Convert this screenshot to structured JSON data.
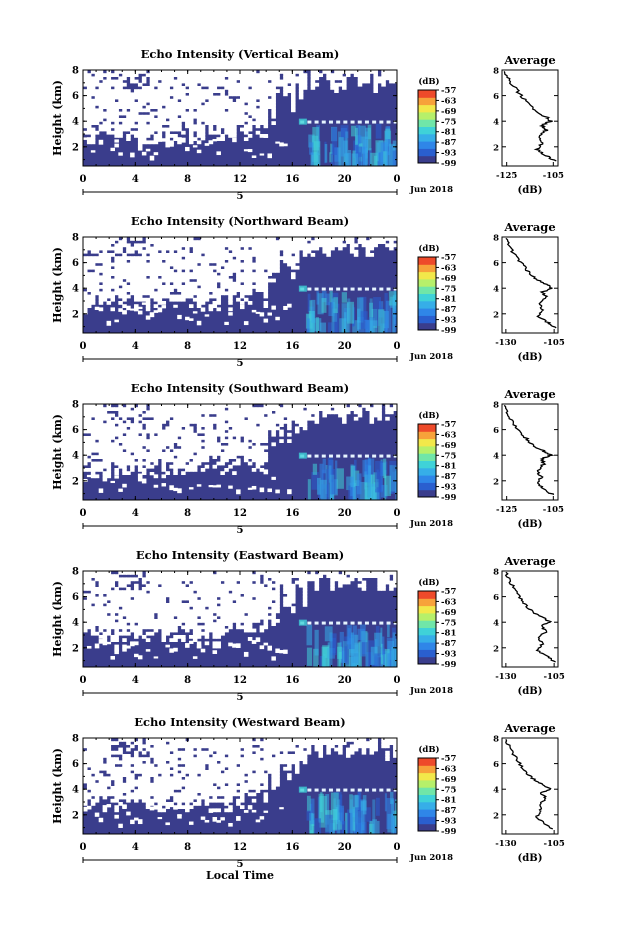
{
  "colormap": [
    "#3a3d8c",
    "#2a5fcf",
    "#2f86e8",
    "#36aee8",
    "#3fd2d8",
    "#70e6a8",
    "#b6f06a",
    "#f2e84a",
    "#f7a23a",
    "#ee4a2a"
  ],
  "background_color": "#3a3d8c",
  "chart_data": [
    {
      "type": "heatmap",
      "title": "Echo Intensity (Vertical Beam)",
      "ylabel": "Height (km)",
      "x_ticks": [
        "0",
        "4",
        "8",
        "12",
        "16",
        "20",
        "0"
      ],
      "x_range": [
        0,
        24
      ],
      "y_ticks": [
        "2",
        "4",
        "6",
        "8"
      ],
      "y_range": [
        0.5,
        8
      ],
      "day_label": "5",
      "month_label": "Jun 2018",
      "colorbar_unit": "(dB)",
      "colorbar_ticks": [
        "-57",
        "-63",
        "-69",
        "-75",
        "-81",
        "-87",
        "-93",
        "-99"
      ],
      "colorbar_range": [
        -99,
        -57
      ],
      "profile": {
        "title": "Average",
        "xlabel": "(dB)",
        "x_ticks": [
          "-125",
          "-105"
        ],
        "x_range": [
          -127,
          -103
        ],
        "y_ticks": [
          "2",
          "4",
          "6",
          "8"
        ],
        "y_range": [
          0.5,
          8
        ],
        "heights": [
          0.9,
          1.3,
          1.8,
          2.3,
          2.8,
          3.3,
          3.7,
          4.0,
          4.3,
          4.7,
          5.2,
          5.8,
          6.5,
          7.2,
          7.9
        ],
        "values": [
          -104,
          -108,
          -112,
          -110,
          -111,
          -108,
          -110,
          -106,
          -108,
          -112,
          -115,
          -118,
          -121,
          -124,
          -126
        ]
      }
    },
    {
      "type": "heatmap",
      "title": "Echo Intensity (Northward Beam)",
      "ylabel": "Height (km)",
      "x_ticks": [
        "0",
        "4",
        "8",
        "12",
        "16",
        "20",
        "0"
      ],
      "x_range": [
        0,
        24
      ],
      "y_ticks": [
        "2",
        "4",
        "6",
        "8"
      ],
      "y_range": [
        0.5,
        8
      ],
      "day_label": "5",
      "month_label": "Jun 2018",
      "colorbar_unit": "(dB)",
      "colorbar_ticks": [
        "-57",
        "-63",
        "-69",
        "-75",
        "-81",
        "-87",
        "-93",
        "-99"
      ],
      "colorbar_range": [
        -99,
        -57
      ],
      "profile": {
        "title": "Average",
        "xlabel": "(dB)",
        "x_ticks": [
          "-130",
          "-105"
        ],
        "x_range": [
          -132,
          -103
        ],
        "y_ticks": [
          "2",
          "4",
          "6",
          "8"
        ],
        "y_range": [
          0.5,
          8
        ],
        "heights": [
          0.9,
          1.3,
          1.8,
          2.3,
          2.8,
          3.3,
          3.7,
          4.0,
          4.3,
          4.7,
          5.2,
          5.8,
          6.5,
          7.2,
          7.9
        ],
        "values": [
          -104,
          -108,
          -113,
          -111,
          -112,
          -109,
          -111,
          -106,
          -109,
          -114,
          -118,
          -121,
          -125,
          -128,
          -130
        ]
      }
    },
    {
      "type": "heatmap",
      "title": "Echo Intensity (Southward Beam)",
      "ylabel": "Height (km)",
      "x_ticks": [
        "0",
        "4",
        "8",
        "12",
        "16",
        "20",
        "0"
      ],
      "x_range": [
        0,
        24
      ],
      "y_ticks": [
        "2",
        "4",
        "6",
        "8"
      ],
      "y_range": [
        0.5,
        8
      ],
      "day_label": "5",
      "month_label": "Jun 2018",
      "colorbar_unit": "(dB)",
      "colorbar_ticks": [
        "-57",
        "-63",
        "-69",
        "-75",
        "-81",
        "-87",
        "-93",
        "-99"
      ],
      "colorbar_range": [
        -99,
        -57
      ],
      "profile": {
        "title": "Average",
        "xlabel": "(dB)",
        "x_ticks": [
          "-125",
          "-105"
        ],
        "x_range": [
          -127,
          -103
        ],
        "y_ticks": [
          "2",
          "4",
          "6",
          "8"
        ],
        "y_range": [
          0.5,
          8
        ],
        "heights": [
          0.9,
          1.3,
          1.8,
          2.3,
          2.8,
          3.3,
          3.7,
          4.0,
          4.3,
          4.7,
          5.2,
          5.8,
          6.5,
          7.2,
          7.9
        ],
        "values": [
          -105,
          -109,
          -112,
          -110,
          -112,
          -109,
          -110,
          -106,
          -109,
          -113,
          -116,
          -119,
          -122,
          -125,
          -126
        ]
      }
    },
    {
      "type": "heatmap",
      "title": "Echo Intensity (Eastward Beam)",
      "ylabel": "Height (km)",
      "x_ticks": [
        "0",
        "4",
        "8",
        "12",
        "16",
        "20",
        "0"
      ],
      "x_range": [
        0,
        24
      ],
      "y_ticks": [
        "2",
        "4",
        "6",
        "8"
      ],
      "y_range": [
        0.5,
        8
      ],
      "day_label": "5",
      "month_label": "Jun 2018",
      "colorbar_unit": "(dB)",
      "colorbar_ticks": [
        "-57",
        "-63",
        "-69",
        "-75",
        "-81",
        "-87",
        "-93",
        "-99"
      ],
      "colorbar_range": [
        -99,
        -57
      ],
      "profile": {
        "title": "Average",
        "xlabel": "(dB)",
        "x_ticks": [
          "-130",
          "-105"
        ],
        "x_range": [
          -132,
          -103
        ],
        "y_ticks": [
          "2",
          "4",
          "6",
          "8"
        ],
        "y_range": [
          0.5,
          8
        ],
        "heights": [
          0.9,
          1.3,
          1.8,
          2.3,
          2.8,
          3.3,
          3.7,
          4.0,
          4.3,
          4.7,
          5.2,
          5.8,
          6.5,
          7.2,
          7.9
        ],
        "values": [
          -105,
          -108,
          -114,
          -111,
          -113,
          -109,
          -112,
          -107,
          -110,
          -115,
          -119,
          -122,
          -125,
          -128,
          -130
        ]
      }
    },
    {
      "type": "heatmap",
      "title": "Echo Intensity (Westward Beam)",
      "ylabel": "Height (km)",
      "x_ticks": [
        "0",
        "4",
        "8",
        "12",
        "16",
        "20",
        "0"
      ],
      "x_range": [
        0,
        24
      ],
      "y_ticks": [
        "2",
        "4",
        "6",
        "8"
      ],
      "y_range": [
        0.5,
        8
      ],
      "day_label": "5",
      "month_label": "Jun 2018",
      "colorbar_unit": "(dB)",
      "colorbar_ticks": [
        "-57",
        "-63",
        "-69",
        "-75",
        "-81",
        "-87",
        "-93",
        "-99"
      ],
      "colorbar_range": [
        -99,
        -57
      ],
      "profile": {
        "title": "Average",
        "xlabel": "(dB)",
        "x_ticks": [
          "-130",
          "-105"
        ],
        "x_range": [
          -132,
          -103
        ],
        "y_ticks": [
          "2",
          "4",
          "6",
          "8"
        ],
        "y_range": [
          0.5,
          8
        ],
        "heights": [
          0.9,
          1.3,
          1.8,
          2.3,
          2.8,
          3.3,
          3.7,
          4.0,
          4.3,
          4.7,
          5.2,
          5.8,
          6.5,
          7.2,
          7.9
        ],
        "values": [
          -106,
          -110,
          -114,
          -112,
          -113,
          -109,
          -112,
          -107,
          -110,
          -115,
          -119,
          -122,
          -125,
          -128,
          -130
        ]
      }
    }
  ],
  "bottom_xlabel": "Local Time"
}
